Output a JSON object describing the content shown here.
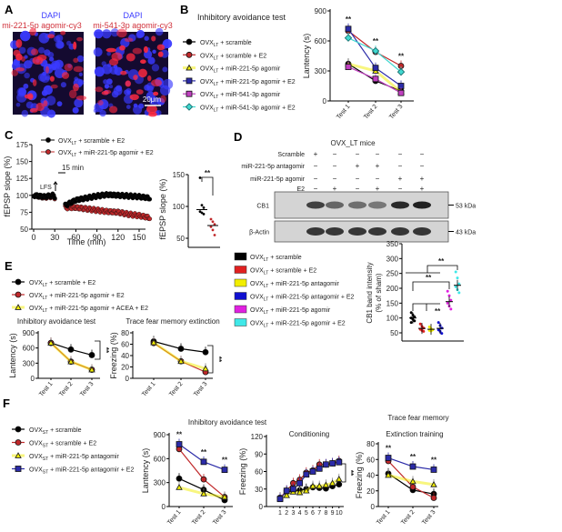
{
  "panels": {
    "A": "A",
    "B": "B",
    "C": "C",
    "D": "D",
    "E": "E",
    "F": "F"
  },
  "panel_a": {
    "left_title": "DAPI",
    "left_subtitle": "mi-221-5p agomir-cy3",
    "right_title": "DAPI",
    "right_subtitle": "mi-541-3p agomir-cy3",
    "scale_bar": "20μm",
    "colors": {
      "dapi": "#3a3aff",
      "cy3": "#ff2a40"
    }
  },
  "panel_c": {
    "interval_label": "15 min",
    "stim_label": "LFS"
  },
  "panel_d": {
    "title": "OVX_LT mice",
    "row_labels": [
      "Scramble",
      "miR-221-5p antagomir",
      "miR-221-5p agomir",
      "E2"
    ],
    "signs": [
      [
        "+",
        "−",
        "−",
        "−",
        "−",
        "−"
      ],
      [
        "−",
        "−",
        "+",
        "+",
        "−",
        "−"
      ],
      [
        "−",
        "−",
        "−",
        "−",
        "+",
        "+"
      ],
      [
        "−",
        "+",
        "−",
        "+",
        "−",
        "+"
      ]
    ],
    "blots": [
      {
        "label": "CB1",
        "kda": "53 kDa",
        "intensity": [
          0.8,
          0.6,
          0.55,
          0.5,
          0.92,
          0.97
        ]
      },
      {
        "label": "β-Actin",
        "kda": "43 kDa",
        "intensity": [
          0.85,
          0.85,
          0.85,
          0.85,
          0.85,
          0.85
        ]
      }
    ]
  },
  "panel_e": {
    "sig": "**"
  },
  "panel_f": {
    "group_title": "Trace fear memory"
  },
  "chart_data": [
    {
      "id": "B",
      "type": "line",
      "title": "Inhibitory avoidance test",
      "ylabel": "Lantency (s)",
      "categories": [
        "Test 1",
        "Test 2",
        "Test 3"
      ],
      "ylim": [
        0,
        900
      ],
      "yticks": [
        0,
        300,
        600,
        900
      ],
      "annotations": [
        {
          "at": "Test 1",
          "text": "**"
        },
        {
          "at": "Test 2",
          "text": "**"
        },
        {
          "at": "Test 3",
          "text": "**"
        }
      ],
      "series": [
        {
          "name": "OVX_LT + scramble",
          "color": "#000000",
          "marker": "circle",
          "values": [
            370,
            200,
            100
          ]
        },
        {
          "name": "OVX_LT + scramble + E2",
          "color": "#c0282a",
          "marker": "circle",
          "values": [
            700,
            490,
            350
          ]
        },
        {
          "name": "OVX_LT + miR-221-5p agomir",
          "color": "#f2ee00",
          "marker": "triangle",
          "values": [
            370,
            300,
            90
          ]
        },
        {
          "name": "OVX_LT + miR-221-5p agomir + E2",
          "color": "#2b2ba8",
          "marker": "square",
          "values": [
            720,
            330,
            150
          ]
        },
        {
          "name": "OVX_LT + miR-541-3p agomir",
          "color": "#c040c0",
          "marker": "square",
          "values": [
            340,
            220,
            80
          ]
        },
        {
          "name": "OVX_LT + miR-541-3p agomir + E2",
          "color": "#40d8d0",
          "marker": "diamond",
          "values": [
            630,
            500,
            290
          ]
        }
      ]
    },
    {
      "id": "C_trace",
      "type": "scatter",
      "xlabel": "Time (min)",
      "ylabel": "fEPSP slope (%)",
      "xlim": [
        0,
        165
      ],
      "xticks": [
        0,
        30,
        60,
        90,
        120,
        150
      ],
      "ylim": [
        50,
        175
      ],
      "yticks": [
        50,
        75,
        100,
        125,
        150,
        175
      ],
      "x": [
        0,
        15,
        28,
        45,
        60,
        75,
        90,
        105,
        120,
        135,
        150,
        165
      ],
      "series": [
        {
          "name": "OVX_LT + scramble + E2",
          "color": "#000000",
          "values": [
            100,
            98,
            100,
            85,
            93,
            96,
            99,
            101,
            100,
            99,
            98,
            96
          ]
        },
        {
          "name": "OVX_LT + miR-221-5p agomir + E2",
          "color": "#c0282a",
          "values": [
            100,
            97,
            99,
            82,
            82,
            80,
            78,
            76,
            75,
            72,
            70,
            67
          ]
        }
      ]
    },
    {
      "id": "C_scatter",
      "type": "scatter",
      "ylabel": "fEPSP slope (%)",
      "ylim": [
        50,
        150
      ],
      "yticks": [
        50,
        100,
        150
      ],
      "annotation": "**",
      "groups": [
        {
          "color": "#000000",
          "points": [
            145,
            102,
            98,
            92,
            90,
            88
          ],
          "mean": 95
        },
        {
          "color": "#c0282a",
          "points": [
            80,
            76,
            72,
            68,
            63,
            55
          ],
          "mean": 70
        }
      ]
    },
    {
      "id": "D_scatter",
      "type": "scatter",
      "ylabel": "CB1 band intensity",
      "ylabel2": "(% of sham)",
      "ylim": [
        50,
        350
      ],
      "yticks": [
        50,
        100,
        150,
        200,
        250,
        300,
        350
      ],
      "annotations": [
        "**",
        "**",
        "**"
      ],
      "groups": [
        {
          "name": "OVX_LT + scramble",
          "color": "#000000",
          "mean": 100,
          "points": [
            118,
            110,
            104,
            100,
            95,
            90,
            85
          ]
        },
        {
          "name": "OVX_LT + scramble + E2",
          "color": "#e02020",
          "mean": 65,
          "points": [
            80,
            72,
            66,
            62,
            58,
            55
          ]
        },
        {
          "name": "OVX_LT + miR-221-5p antagomir",
          "color": "#f2ee00",
          "mean": 62,
          "points": [
            70,
            64,
            60,
            58,
            56
          ]
        },
        {
          "name": "OVX_LT + miR-221-5p antagomir + E2",
          "color": "#1010d0",
          "mean": 65,
          "points": [
            85,
            75,
            66,
            60,
            55,
            48
          ]
        },
        {
          "name": "OVX_LT + miR-221-5p agomir",
          "color": "#e020e0",
          "mean": 155,
          "points": [
            190,
            175,
            160,
            150,
            140,
            130
          ]
        },
        {
          "name": "OVX_LT + miR-221-5p agomir + E2",
          "color": "#40e8e8",
          "mean": 210,
          "points": [
            255,
            235,
            215,
            205,
            195,
            185
          ]
        }
      ]
    },
    {
      "id": "E1",
      "type": "line",
      "title": "Inhibitory avoidance test",
      "ylabel": "Lantency (s)",
      "categories": [
        "Test 1",
        "Test 2",
        "Test 3"
      ],
      "ylim": [
        0,
        900
      ],
      "yticks": [
        0,
        300,
        600,
        900
      ],
      "series": [
        {
          "name": "OVX_LT + scramble + E2",
          "color": "#000000",
          "marker": "circle",
          "values": [
            700,
            570,
            460
          ]
        },
        {
          "name": "OVX_LT + miR-221-5p agomir + E2",
          "color": "#c0282a",
          "marker": "circle",
          "values": [
            700,
            330,
            170
          ]
        },
        {
          "name": "OVX_LT + miR-221-5p agomir + ACEA + E2",
          "color": "#f2ee00",
          "marker": "triangle",
          "values": [
            700,
            330,
            170
          ]
        }
      ]
    },
    {
      "id": "E2",
      "type": "line",
      "title": "Trace fear memory extinction",
      "ylabel": "Freezing (%)",
      "categories": [
        "Test 1",
        "Test 2",
        "Test 3"
      ],
      "ylim": [
        0,
        80
      ],
      "yticks": [
        0,
        20,
        40,
        60,
        80
      ],
      "series": [
        {
          "name": "OVX_LT + scramble + E2",
          "color": "#000000",
          "marker": "circle",
          "values": [
            65,
            52,
            46
          ]
        },
        {
          "name": "OVX_LT + miR-221-5p agomir + E2",
          "color": "#c0282a",
          "marker": "circle",
          "values": [
            62,
            30,
            11
          ]
        },
        {
          "name": "OVX_LT + miR-221-5p agomir + ACEA + E2",
          "color": "#f2ee00",
          "marker": "triangle",
          "values": [
            63,
            30,
            17
          ]
        }
      ]
    },
    {
      "id": "F1",
      "type": "line",
      "title": "Inhibitory avoidance test",
      "ylabel": "Lantency (s)",
      "categories": [
        "Test 1",
        "Test 2",
        "Test 3"
      ],
      "ylim": [
        0,
        900
      ],
      "yticks": [
        0,
        300,
        600,
        900
      ],
      "annotations": [
        {
          "at": "Test 1",
          "text": "**"
        },
        {
          "at": "Test 2",
          "text": "**"
        },
        {
          "at": "Test 3",
          "text": "**"
        }
      ],
      "series": [
        {
          "name": "OVX_ST + scramble",
          "color": "#000000",
          "marker": "circle",
          "values": [
            350,
            210,
            80
          ]
        },
        {
          "name": "OVX_ST + scramble + E2",
          "color": "#c0282a",
          "marker": "circle",
          "values": [
            720,
            340,
            120
          ]
        },
        {
          "name": "OVX_ST + miR-221-5p antagomir",
          "color": "#f2ee00",
          "marker": "triangle",
          "values": [
            240,
            160,
            120
          ]
        },
        {
          "name": "OVX_ST + miR-221-5p antagomir + E2",
          "color": "#2b2ba8",
          "marker": "square",
          "values": [
            780,
            560,
            460
          ]
        }
      ]
    },
    {
      "id": "F2",
      "type": "line",
      "title": "Conditioning",
      "ylabel": "Freezing (%)",
      "categories": [
        "1",
        "2",
        "3",
        "4",
        "5",
        "6",
        "7",
        "8",
        "9",
        "10"
      ],
      "ylim": [
        0,
        120
      ],
      "yticks": [
        0,
        30,
        60,
        90,
        120
      ],
      "series": [
        {
          "name": "OVX_ST + scramble",
          "color": "#000000",
          "marker": "circle",
          "values": [
            15,
            25,
            27,
            28,
            30,
            33,
            32,
            31,
            35,
            38
          ]
        },
        {
          "name": "OVX_ST + scramble + E2",
          "color": "#c0282a",
          "marker": "circle",
          "values": [
            15,
            27,
            40,
            46,
            58,
            62,
            72,
            72,
            74,
            78
          ]
        },
        {
          "name": "OVX_ST + miR-221-5p antagomir",
          "color": "#f2ee00",
          "marker": "triangle",
          "values": [
            15,
            19,
            25,
            24,
            27,
            35,
            35,
            37,
            40,
            47
          ]
        },
        {
          "name": "OVX_ST + miR-221-5p antagomir + E2",
          "color": "#2b2ba8",
          "marker": "square",
          "values": [
            13,
            27,
            30,
            40,
            55,
            60,
            65,
            72,
            74,
            76
          ]
        }
      ]
    },
    {
      "id": "F3",
      "type": "line",
      "title": "Extinction training",
      "ylabel": "Freezing (%)",
      "categories": [
        "Test 1",
        "Test 2",
        "Test 3"
      ],
      "ylim": [
        0,
        80
      ],
      "yticks": [
        0,
        20,
        40,
        60,
        80
      ],
      "annotations": [
        {
          "at": "Test 1",
          "text": "**"
        },
        {
          "at": "Test 2",
          "text": "**"
        },
        {
          "at": "Test 3",
          "text": "**"
        }
      ],
      "series": [
        {
          "name": "OVX_ST + scramble",
          "color": "#000000",
          "marker": "circle",
          "values": [
            42,
            21,
            16
          ]
        },
        {
          "name": "OVX_ST + scramble + E2",
          "color": "#c0282a",
          "marker": "circle",
          "values": [
            58,
            25,
            11
          ]
        },
        {
          "name": "OVX_ST + miR-221-5p antagomir",
          "color": "#f2ee00",
          "marker": "triangle",
          "values": [
            40,
            32,
            28
          ]
        },
        {
          "name": "OVX_ST + miR-221-5p antagomir + E2",
          "color": "#2b2ba8",
          "marker": "square",
          "values": [
            62,
            51,
            47
          ]
        }
      ]
    }
  ]
}
